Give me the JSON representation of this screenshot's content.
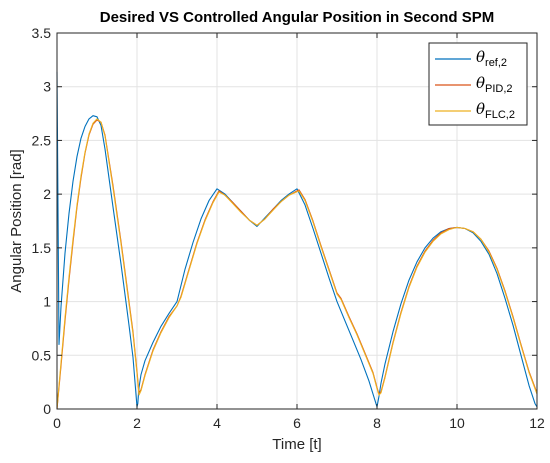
{
  "chart_data": {
    "type": "line",
    "title": "Desired VS Controlled Angular Position in Second SPM",
    "xlabel": "Time [t]",
    "ylabel": "Angular Position [rad]",
    "xlim": [
      0,
      12
    ],
    "ylim": [
      0,
      3.5
    ],
    "xticks": [
      0,
      2,
      4,
      6,
      8,
      10,
      12
    ],
    "yticks": [
      0,
      0.5,
      1,
      1.5,
      2,
      2.5,
      3,
      3.5
    ],
    "xtick_labels": [
      "0",
      "2",
      "4",
      "6",
      "8",
      "10",
      "12"
    ],
    "ytick_labels": [
      "0",
      "0.5",
      "1",
      "1.5",
      "2",
      "2.5",
      "3",
      "3.5"
    ],
    "grid": true,
    "legend_position": "top-right",
    "series": [
      {
        "name_main": "θ",
        "name_sub": "ref,2",
        "color": "#0072bd",
        "x": [
          0,
          0.05,
          0.1,
          0.2,
          0.3,
          0.4,
          0.5,
          0.6,
          0.7,
          0.8,
          0.9,
          1.0,
          1.1,
          1.2,
          1.4,
          1.6,
          1.8,
          1.9,
          2.0,
          2.02,
          2.05,
          2.1,
          2.2,
          2.4,
          2.6,
          2.8,
          3.0,
          3.2,
          3.4,
          3.6,
          3.8,
          4.0,
          4.2,
          4.4,
          4.6,
          4.8,
          5.0,
          5.2,
          5.4,
          5.6,
          5.8,
          6.0,
          6.2,
          6.4,
          6.6,
          6.8,
          7.0,
          7.2,
          7.4,
          7.6,
          7.8,
          7.95,
          8.0,
          8.05,
          8.1,
          8.2,
          8.4,
          8.6,
          8.8,
          9.0,
          9.2,
          9.4,
          9.6,
          9.8,
          10.0,
          10.2,
          10.4,
          10.6,
          10.8,
          11.0,
          11.2,
          11.4,
          11.6,
          11.8,
          11.95,
          12.0
        ],
        "y": [
          3.14,
          0.6,
          0.95,
          1.45,
          1.82,
          2.12,
          2.35,
          2.52,
          2.63,
          2.7,
          2.73,
          2.72,
          2.64,
          2.42,
          1.88,
          1.35,
          0.78,
          0.48,
          0.02,
          0.05,
          0.2,
          0.32,
          0.45,
          0.62,
          0.77,
          0.89,
          1.0,
          1.3,
          1.55,
          1.77,
          1.94,
          2.05,
          2.0,
          1.92,
          1.84,
          1.76,
          1.7,
          1.78,
          1.86,
          1.94,
          2.0,
          2.05,
          1.9,
          1.68,
          1.45,
          1.22,
          1.0,
          0.82,
          0.64,
          0.46,
          0.26,
          0.08,
          0.02,
          0.12,
          0.24,
          0.42,
          0.72,
          0.98,
          1.2,
          1.37,
          1.5,
          1.59,
          1.65,
          1.68,
          1.69,
          1.68,
          1.64,
          1.56,
          1.44,
          1.26,
          1.03,
          0.78,
          0.5,
          0.22,
          0.05,
          0.02
        ]
      },
      {
        "name_main": "θ",
        "name_sub": "PID,2",
        "color": "#d95319",
        "x": [
          0,
          0.05,
          0.1,
          0.2,
          0.3,
          0.4,
          0.5,
          0.6,
          0.7,
          0.8,
          0.9,
          1.0,
          1.1,
          1.2,
          1.4,
          1.6,
          1.8,
          1.9,
          2.0,
          2.05,
          2.1,
          2.2,
          2.4,
          2.6,
          2.8,
          3.0,
          3.1,
          3.3,
          3.5,
          3.7,
          3.9,
          4.05,
          4.2,
          4.4,
          4.6,
          4.8,
          5.0,
          5.2,
          5.4,
          5.6,
          5.8,
          6.05,
          6.2,
          6.4,
          6.6,
          6.8,
          7.0,
          7.1,
          7.3,
          7.5,
          7.7,
          7.9,
          8.0,
          8.05,
          8.1,
          8.2,
          8.4,
          8.6,
          8.8,
          9.0,
          9.2,
          9.4,
          9.6,
          9.8,
          10.0,
          10.2,
          10.4,
          10.6,
          10.8,
          11.0,
          11.2,
          11.4,
          11.6,
          11.8,
          12.0
        ],
        "y": [
          0.0,
          0.2,
          0.4,
          0.82,
          1.2,
          1.55,
          1.88,
          2.15,
          2.38,
          2.55,
          2.65,
          2.69,
          2.67,
          2.55,
          2.08,
          1.56,
          1.0,
          0.72,
          0.35,
          0.15,
          0.18,
          0.32,
          0.55,
          0.72,
          0.86,
          0.96,
          1.05,
          1.3,
          1.55,
          1.76,
          1.93,
          2.03,
          1.99,
          1.92,
          1.84,
          1.76,
          1.71,
          1.77,
          1.86,
          1.93,
          1.99,
          2.04,
          1.95,
          1.75,
          1.52,
          1.3,
          1.08,
          1.03,
          0.86,
          0.7,
          0.52,
          0.34,
          0.2,
          0.14,
          0.16,
          0.3,
          0.62,
          0.9,
          1.14,
          1.33,
          1.47,
          1.57,
          1.64,
          1.68,
          1.69,
          1.68,
          1.65,
          1.58,
          1.47,
          1.31,
          1.1,
          0.86,
          0.6,
          0.35,
          0.15
        ]
      },
      {
        "name_main": "θ",
        "name_sub": "FLC,2",
        "color": "#edb120",
        "x": [
          0,
          0.05,
          0.1,
          0.2,
          0.3,
          0.4,
          0.5,
          0.6,
          0.7,
          0.8,
          0.9,
          1.0,
          1.1,
          1.2,
          1.4,
          1.6,
          1.8,
          1.9,
          2.0,
          2.05,
          2.1,
          2.2,
          2.4,
          2.6,
          2.8,
          3.0,
          3.1,
          3.3,
          3.5,
          3.7,
          3.9,
          4.05,
          4.2,
          4.4,
          4.6,
          4.8,
          5.0,
          5.2,
          5.4,
          5.6,
          5.8,
          6.05,
          6.2,
          6.4,
          6.6,
          6.8,
          7.0,
          7.1,
          7.3,
          7.5,
          7.7,
          7.9,
          8.0,
          8.05,
          8.1,
          8.2,
          8.4,
          8.6,
          8.8,
          9.0,
          9.2,
          9.4,
          9.6,
          9.8,
          10.0,
          10.2,
          10.4,
          10.6,
          10.8,
          11.0,
          11.2,
          11.4,
          11.6,
          11.8,
          12.0
        ],
        "y": [
          0.0,
          0.22,
          0.43,
          0.85,
          1.23,
          1.58,
          1.9,
          2.17,
          2.39,
          2.56,
          2.66,
          2.7,
          2.67,
          2.54,
          2.06,
          1.54,
          0.98,
          0.7,
          0.33,
          0.13,
          0.17,
          0.31,
          0.54,
          0.71,
          0.85,
          0.96,
          1.04,
          1.29,
          1.54,
          1.75,
          1.92,
          2.02,
          1.99,
          1.91,
          1.83,
          1.76,
          1.71,
          1.77,
          1.85,
          1.93,
          1.99,
          2.03,
          1.94,
          1.74,
          1.51,
          1.29,
          1.07,
          1.02,
          0.85,
          0.69,
          0.51,
          0.33,
          0.19,
          0.13,
          0.15,
          0.29,
          0.61,
          0.89,
          1.13,
          1.32,
          1.46,
          1.56,
          1.63,
          1.67,
          1.69,
          1.68,
          1.65,
          1.58,
          1.46,
          1.3,
          1.09,
          0.85,
          0.59,
          0.34,
          0.14
        ]
      }
    ]
  }
}
